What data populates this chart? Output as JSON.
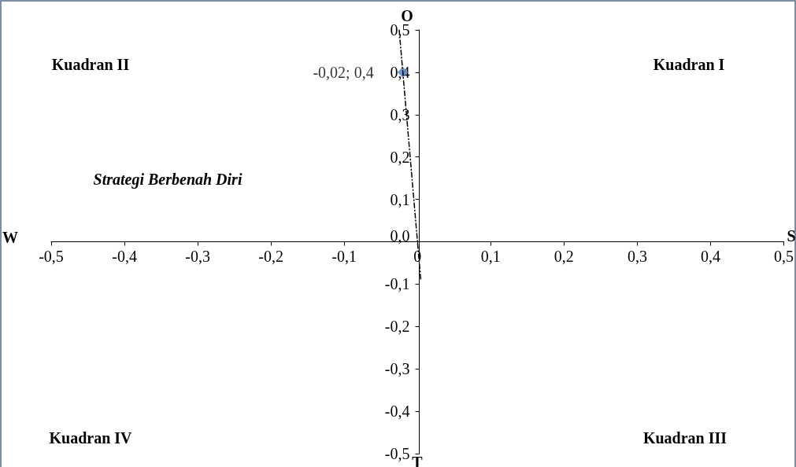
{
  "chart_data": {
    "type": "scatter",
    "series": [
      {
        "color": "#4f81bd",
        "x": [
          -0.02
        ],
        "values": [
          0.4
        ],
        "value_labels": [
          "-0,02; 0,4"
        ],
        "marker": "diamond"
      },
      {
        "type": "line",
        "color": "#000000",
        "x": [
          -0.025,
          0.0045
        ],
        "values": [
          0.5,
          -0.09
        ],
        "line_style": "dashed",
        "marker": "none"
      }
    ],
    "xlim": [
      -0.5,
      0.5
    ],
    "ylim": [
      -0.5,
      0.5
    ],
    "xticks": [
      {
        "value": -0.5,
        "label": "-0,5"
      },
      {
        "value": -0.4,
        "label": "-0,4"
      },
      {
        "value": -0.3,
        "label": "-0,3"
      },
      {
        "value": -0.2,
        "label": "-0,2"
      },
      {
        "value": -0.1,
        "label": "-0,1"
      },
      {
        "value": 0,
        "label": "0"
      },
      {
        "value": 0.1,
        "label": "0,1"
      },
      {
        "value": 0.2,
        "label": "0,2"
      },
      {
        "value": 0.3,
        "label": "0,3"
      },
      {
        "value": 0.4,
        "label": "0,4"
      },
      {
        "value": 0.5,
        "label": "0,5"
      }
    ],
    "yticks": [
      {
        "value": -0.5,
        "label": "-0,5"
      },
      {
        "value": -0.4,
        "label": "-0,4"
      },
      {
        "value": -0.3,
        "label": "-0,3"
      },
      {
        "value": -0.2,
        "label": "-0,2"
      },
      {
        "value": -0.1,
        "label": "-0,1"
      },
      {
        "value": 0,
        "label": "0,0"
      },
      {
        "value": 0.1,
        "label": "0,1"
      },
      {
        "value": 0.2,
        "label": "0,2"
      },
      {
        "value": 0.3,
        "label": "0,3"
      },
      {
        "value": 0.4,
        "label": "0,4"
      },
      {
        "value": 0.5,
        "label": "0,5"
      }
    ],
    "annotations": [
      "Kuadran II",
      "Kuadran I",
      "Strategi Berbenah Diri",
      "Kuadran IV",
      "Kuadran III",
      "W",
      "S",
      "O",
      "T"
    ]
  }
}
